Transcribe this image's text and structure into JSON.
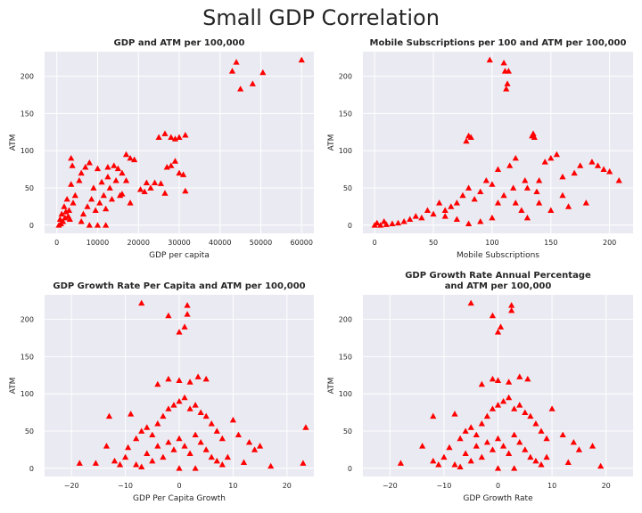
{
  "suptitle": "Small GDP Correlation",
  "colors": {
    "marker": "#ff0000",
    "axes_bg": "#eaeaf2",
    "grid": "#ffffff"
  },
  "chart_data": [
    {
      "type": "scatter",
      "title": "GDP and ATM per 100,000",
      "xlabel": "GDP per capita",
      "ylabel": "ATM",
      "xlim": [
        -3000,
        63000
      ],
      "ylim": [
        -11,
        233
      ],
      "xticks": [
        0,
        10000,
        20000,
        30000,
        40000,
        50000,
        60000
      ],
      "yticks": [
        0,
        50,
        100,
        150,
        200
      ],
      "grid": true,
      "marker": "triangle",
      "points": [
        [
          60000,
          222
        ],
        [
          44000,
          219
        ],
        [
          43000,
          207
        ],
        [
          45000,
          183
        ],
        [
          48000,
          190
        ],
        [
          50500,
          205
        ],
        [
          25000,
          118
        ],
        [
          26500,
          123
        ],
        [
          28000,
          118
        ],
        [
          29000,
          116
        ],
        [
          30000,
          118
        ],
        [
          31500,
          121
        ],
        [
          17000,
          95
        ],
        [
          18000,
          90
        ],
        [
          19000,
          88
        ],
        [
          28000,
          80
        ],
        [
          29000,
          86
        ],
        [
          30000,
          70
        ],
        [
          31000,
          68
        ],
        [
          31500,
          46
        ],
        [
          26500,
          43
        ],
        [
          27000,
          78
        ],
        [
          22000,
          57
        ],
        [
          24000,
          57
        ],
        [
          25500,
          56
        ],
        [
          23000,
          50
        ],
        [
          20500,
          48
        ],
        [
          21500,
          45
        ],
        [
          14000,
          80
        ],
        [
          15000,
          76
        ],
        [
          16000,
          70
        ],
        [
          17000,
          60
        ],
        [
          18000,
          30
        ],
        [
          15500,
          40
        ],
        [
          13000,
          50
        ],
        [
          12500,
          78
        ],
        [
          11000,
          58
        ],
        [
          10000,
          76
        ],
        [
          9000,
          50
        ],
        [
          8000,
          84
        ],
        [
          7000,
          78
        ],
        [
          6000,
          70
        ],
        [
          5500,
          60
        ],
        [
          4500,
          40
        ],
        [
          4000,
          30
        ],
        [
          3500,
          55
        ],
        [
          3500,
          90
        ],
        [
          3800,
          80
        ],
        [
          3000,
          20
        ],
        [
          2500,
          35
        ],
        [
          2000,
          10
        ],
        [
          1500,
          5
        ],
        [
          1000,
          2
        ],
        [
          500,
          0
        ],
        [
          800,
          8
        ],
        [
          1200,
          15
        ],
        [
          1800,
          25
        ],
        [
          2200,
          18
        ],
        [
          2800,
          12
        ],
        [
          3200,
          8
        ],
        [
          6500,
          15
        ],
        [
          7500,
          25
        ],
        [
          8500,
          35
        ],
        [
          9500,
          20
        ],
        [
          10500,
          30
        ],
        [
          11500,
          40
        ],
        [
          12000,
          22
        ],
        [
          13500,
          35
        ],
        [
          8000,
          0
        ],
        [
          10000,
          0
        ],
        [
          12000,
          0
        ],
        [
          6000,
          5
        ],
        [
          16000,
          42
        ],
        [
          14500,
          60
        ],
        [
          12500,
          65
        ]
      ]
    },
    {
      "type": "scatter",
      "title": "Mobile Subscriptions per 100 and ATM per 100,000",
      "xlabel": "Mobile Subscriptions",
      "ylabel": "ATM",
      "xlim": [
        -10,
        220
      ],
      "ylim": [
        -11,
        233
      ],
      "xticks": [
        0,
        50,
        100,
        150,
        200
      ],
      "yticks": [
        0,
        50,
        100,
        150,
        200
      ],
      "grid": true,
      "marker": "triangle",
      "points": [
        [
          98,
          222
        ],
        [
          110,
          218
        ],
        [
          111,
          207
        ],
        [
          114,
          207
        ],
        [
          113,
          190
        ],
        [
          112,
          183
        ],
        [
          134,
          120
        ],
        [
          135,
          123
        ],
        [
          136,
          118
        ],
        [
          80,
          120
        ],
        [
          82,
          118
        ],
        [
          78,
          113
        ],
        [
          200,
          72
        ],
        [
          208,
          60
        ],
        [
          195,
          75
        ],
        [
          190,
          80
        ],
        [
          185,
          85
        ],
        [
          175,
          80
        ],
        [
          170,
          70
        ],
        [
          160,
          65
        ],
        [
          155,
          95
        ],
        [
          150,
          90
        ],
        [
          145,
          85
        ],
        [
          140,
          60
        ],
        [
          130,
          50
        ],
        [
          120,
          90
        ],
        [
          115,
          80
        ],
        [
          105,
          75
        ],
        [
          100,
          55
        ],
        [
          95,
          60
        ],
        [
          90,
          45
        ],
        [
          85,
          35
        ],
        [
          80,
          50
        ],
        [
          75,
          40
        ],
        [
          70,
          30
        ],
        [
          65,
          25
        ],
        [
          60,
          20
        ],
        [
          55,
          30
        ],
        [
          50,
          15
        ],
        [
          45,
          20
        ],
        [
          40,
          10
        ],
        [
          35,
          12
        ],
        [
          30,
          8
        ],
        [
          25,
          5
        ],
        [
          20,
          3
        ],
        [
          15,
          2
        ],
        [
          10,
          1
        ],
        [
          5,
          0
        ],
        [
          0,
          0
        ],
        [
          2,
          3
        ],
        [
          8,
          5
        ],
        [
          110,
          40
        ],
        [
          120,
          30
        ],
        [
          125,
          20
        ],
        [
          130,
          10
        ],
        [
          140,
          30
        ],
        [
          150,
          20
        ],
        [
          160,
          40
        ],
        [
          165,
          25
        ],
        [
          180,
          30
        ],
        [
          100,
          10
        ],
        [
          90,
          5
        ],
        [
          80,
          2
        ],
        [
          70,
          8
        ],
        [
          60,
          12
        ],
        [
          105,
          30
        ],
        [
          118,
          50
        ],
        [
          128,
          60
        ],
        [
          138,
          45
        ]
      ]
    },
    {
      "type": "scatter",
      "title": "GDP Growth Rate Per Capita and ATM per 100,000",
      "xlabel": "GDP Per Capita Growth",
      "ylabel": "ATM",
      "xlim": [
        -25,
        25
      ],
      "ylim": [
        -11,
        233
      ],
      "xticks": [
        -20,
        -10,
        0,
        10,
        20
      ],
      "yticks": [
        0,
        50,
        100,
        150,
        200
      ],
      "grid": true,
      "marker": "triangle",
      "points": [
        [
          -7,
          222
        ],
        [
          1.5,
          219
        ],
        [
          1.5,
          207
        ],
        [
          -2,
          205
        ],
        [
          1,
          190
        ],
        [
          0,
          183
        ],
        [
          -4,
          113
        ],
        [
          -2,
          120
        ],
        [
          0,
          118
        ],
        [
          2,
          116
        ],
        [
          3.5,
          123
        ],
        [
          5,
          120
        ],
        [
          -13,
          70
        ],
        [
          -9,
          73
        ],
        [
          -18.5,
          7
        ],
        [
          -15.5,
          7
        ],
        [
          -13.5,
          30
        ],
        [
          -12,
          10
        ],
        [
          -11,
          5
        ],
        [
          -10,
          15
        ],
        [
          -9.5,
          28
        ],
        [
          23.5,
          55
        ],
        [
          23,
          7
        ],
        [
          17,
          3
        ],
        [
          15,
          30
        ],
        [
          14,
          25
        ],
        [
          13,
          35
        ],
        [
          12,
          8
        ],
        [
          11,
          45
        ],
        [
          10,
          65
        ],
        [
          -8,
          40
        ],
        [
          -7,
          50
        ],
        [
          -6,
          55
        ],
        [
          -5,
          45
        ],
        [
          -4,
          60
        ],
        [
          -3,
          70
        ],
        [
          -2,
          80
        ],
        [
          -1,
          85
        ],
        [
          0,
          90
        ],
        [
          1,
          95
        ],
        [
          2,
          80
        ],
        [
          3,
          85
        ],
        [
          4,
          75
        ],
        [
          5,
          70
        ],
        [
          6,
          60
        ],
        [
          7,
          50
        ],
        [
          8,
          40
        ],
        [
          -6,
          20
        ],
        [
          -5,
          10
        ],
        [
          -4,
          30
        ],
        [
          -3,
          15
        ],
        [
          -2,
          35
        ],
        [
          -1,
          25
        ],
        [
          0,
          40
        ],
        [
          1,
          30
        ],
        [
          2,
          20
        ],
        [
          3,
          45
        ],
        [
          4,
          35
        ],
        [
          5,
          25
        ],
        [
          6,
          15
        ],
        [
          7,
          10
        ],
        [
          8,
          5
        ],
        [
          9,
          15
        ],
        [
          -8,
          5
        ],
        [
          -7,
          2
        ],
        [
          0,
          0
        ],
        [
          3,
          0
        ]
      ]
    },
    {
      "type": "scatter",
      "title": "GDP Growth Rate Annual Percentage and ATM per 100,000",
      "xlabel": "GDP Growth Rate",
      "ylabel": "ATM",
      "xlim": [
        -25,
        25
      ],
      "ylim": [
        -11,
        233
      ],
      "xticks": [
        -20,
        -10,
        0,
        10,
        20
      ],
      "yticks": [
        0,
        50,
        100,
        150,
        200
      ],
      "grid": true,
      "marker": "triangle",
      "points": [
        [
          -5,
          222
        ],
        [
          2.5,
          219
        ],
        [
          2.5,
          212
        ],
        [
          -1,
          205
        ],
        [
          0.5,
          190
        ],
        [
          0,
          183
        ],
        [
          -3,
          113
        ],
        [
          -1,
          120
        ],
        [
          0,
          118
        ],
        [
          2,
          116
        ],
        [
          4,
          123
        ],
        [
          5.5,
          120
        ],
        [
          -12,
          70
        ],
        [
          -8,
          73
        ],
        [
          -18,
          7
        ],
        [
          -14,
          30
        ],
        [
          -12,
          10
        ],
        [
          -11,
          5
        ],
        [
          -10,
          15
        ],
        [
          -9,
          28
        ],
        [
          19,
          3
        ],
        [
          17.5,
          30
        ],
        [
          15,
          25
        ],
        [
          14,
          35
        ],
        [
          13,
          8
        ],
        [
          12,
          45
        ],
        [
          10,
          80
        ],
        [
          -7,
          40
        ],
        [
          -6,
          50
        ],
        [
          -5,
          55
        ],
        [
          -4,
          45
        ],
        [
          -3,
          60
        ],
        [
          -2,
          70
        ],
        [
          -1,
          80
        ],
        [
          0,
          85
        ],
        [
          1,
          90
        ],
        [
          2,
          95
        ],
        [
          3,
          80
        ],
        [
          4,
          85
        ],
        [
          5,
          75
        ],
        [
          6,
          70
        ],
        [
          7,
          60
        ],
        [
          8,
          50
        ],
        [
          9,
          40
        ],
        [
          -6,
          20
        ],
        [
          -5,
          10
        ],
        [
          -4,
          30
        ],
        [
          -3,
          15
        ],
        [
          -2,
          35
        ],
        [
          -1,
          25
        ],
        [
          0,
          40
        ],
        [
          1,
          30
        ],
        [
          2,
          20
        ],
        [
          3,
          45
        ],
        [
          4,
          35
        ],
        [
          5,
          25
        ],
        [
          6,
          15
        ],
        [
          7,
          10
        ],
        [
          8,
          5
        ],
        [
          9,
          15
        ],
        [
          -8,
          5
        ],
        [
          -7,
          2
        ],
        [
          0,
          0
        ],
        [
          3,
          0
        ]
      ]
    }
  ]
}
